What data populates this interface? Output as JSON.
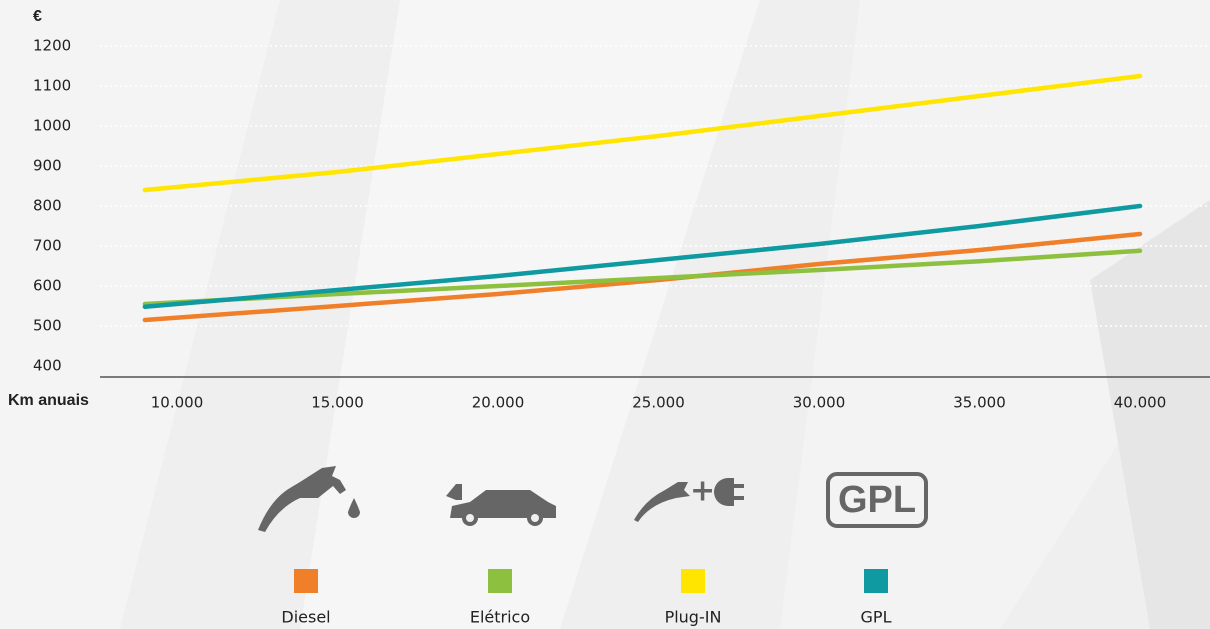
{
  "chart_data": {
    "type": "line",
    "y_label": "€",
    "x_label": "Km anuais",
    "x": [
      9000,
      15000,
      20000,
      25000,
      30000,
      35000,
      40000
    ],
    "series": [
      {
        "name": "Diesel",
        "color": "#f07f2a",
        "values": [
          515,
          550,
          580,
          615,
          655,
          690,
          730
        ]
      },
      {
        "name": "Elétrico",
        "color": "#8dc03f",
        "values": [
          555,
          580,
          600,
          620,
          640,
          662,
          688
        ]
      },
      {
        "name": "Plug-IN",
        "color": "#ffe500",
        "values": [
          840,
          885,
          930,
          975,
          1025,
          1075,
          1125
        ]
      },
      {
        "name": "GPL",
        "color": "#0e9aa0",
        "values": [
          548,
          590,
          625,
          665,
          705,
          750,
          800
        ]
      }
    ],
    "xlim": [
      5000,
      40000
    ],
    "xticks": [
      {
        "value": 10000,
        "label": "10.000"
      },
      {
        "value": 15000,
        "label": "15.000"
      },
      {
        "value": 20000,
        "label": "20.000"
      },
      {
        "value": 25000,
        "label": "25.000"
      },
      {
        "value": 30000,
        "label": "30.000"
      },
      {
        "value": 35000,
        "label": "35.000"
      },
      {
        "value": 40000,
        "label": "40.000"
      }
    ],
    "ylim": [
      400,
      1200
    ],
    "yticks": [
      400,
      500,
      600,
      700,
      800,
      900,
      1000,
      1100,
      1200
    ],
    "grid": true,
    "gpl_icon_text": "GPL"
  }
}
